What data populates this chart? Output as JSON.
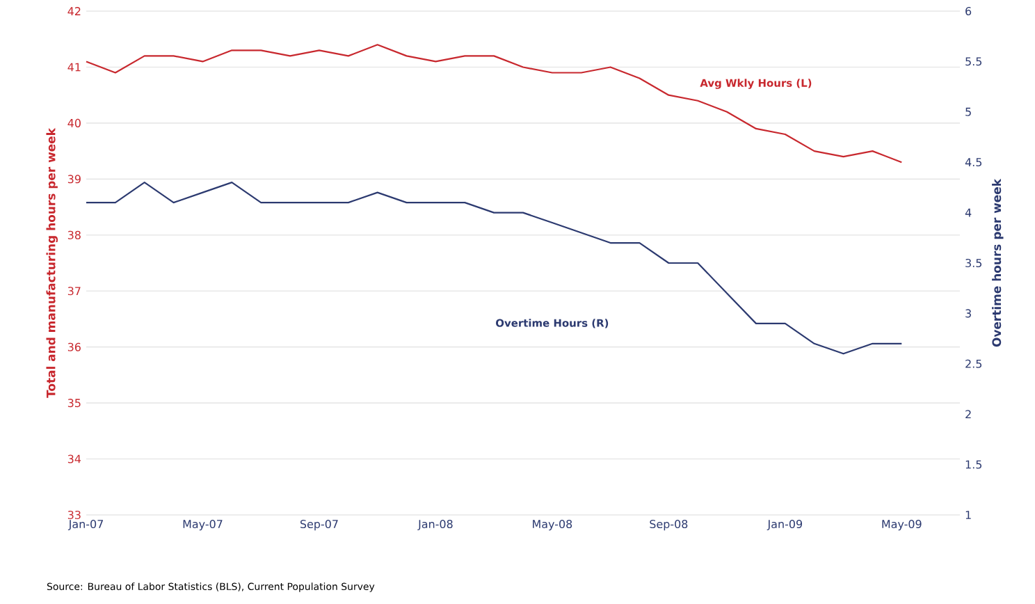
{
  "chart_data": {
    "type": "line",
    "x": [
      "2007-01",
      "2007-02",
      "2007-03",
      "2007-04",
      "2007-05",
      "2007-06",
      "2007-07",
      "2007-08",
      "2007-09",
      "2007-10",
      "2007-11",
      "2007-12",
      "2008-01",
      "2008-02",
      "2008-03",
      "2008-04",
      "2008-05",
      "2008-06",
      "2008-07",
      "2008-08",
      "2008-09",
      "2008-10",
      "2008-11",
      "2008-12",
      "2009-01",
      "2009-02",
      "2009-03",
      "2009-04",
      "2009-05"
    ],
    "series": [
      {
        "name": "Avg Wkly Hours (L)",
        "color": "#c8282e",
        "values": [
          41.1,
          40.9,
          41.2,
          41.2,
          41.1,
          41.3,
          41.3,
          41.2,
          41.3,
          41.2,
          41.4,
          41.2,
          41.1,
          41.2,
          41.2,
          41.0,
          40.9,
          40.9,
          41.0,
          40.8,
          40.5,
          40.4,
          40.2,
          39.9,
          39.8,
          39.5,
          39.4,
          39.5,
          39.3
        ]
      },
      {
        "name": "Overtime Hours (R)",
        "color": "#2c3a70",
        "axis": "y2",
        "values": [
          4.1,
          4.1,
          4.3,
          4.1,
          4.2,
          4.3,
          4.1,
          4.1,
          4.1,
          4.1,
          4.2,
          4.1,
          4.1,
          4.1,
          4.0,
          4.0,
          3.9,
          3.8,
          3.7,
          3.7,
          3.5,
          3.5,
          3.2,
          2.9,
          2.9,
          2.7,
          2.6,
          2.7,
          2.7
        ]
      }
    ],
    "ylabel": "Total and manufacturing hours per week",
    "y2label": "Overtime hours per week",
    "xlim": [
      "2007-01",
      "2009-07"
    ],
    "xticks": [
      {
        "value": "2007-01",
        "label": "Jan-07"
      },
      {
        "value": "2007-05",
        "label": "May-07"
      },
      {
        "value": "2007-09",
        "label": "Sep-07"
      },
      {
        "value": "2008-01",
        "label": "Jan-08"
      },
      {
        "value": "2008-05",
        "label": "May-08"
      },
      {
        "value": "2008-09",
        "label": "Sep-08"
      },
      {
        "value": "2009-01",
        "label": "Jan-09"
      },
      {
        "value": "2009-05",
        "label": "May-09"
      }
    ],
    "ylim": [
      33,
      42
    ],
    "yticks": [
      33,
      34,
      35,
      36,
      37,
      38,
      39,
      40,
      41,
      42
    ],
    "y2lim": [
      1,
      6
    ],
    "y2ticks": [
      1,
      1.5,
      2,
      2.5,
      3,
      3.5,
      4,
      4.5,
      5,
      5.5,
      6
    ],
    "grid": "y",
    "annotations": [
      "Source:  Bureau of Labor Statistics (BLS), Current Population Survey"
    ]
  }
}
